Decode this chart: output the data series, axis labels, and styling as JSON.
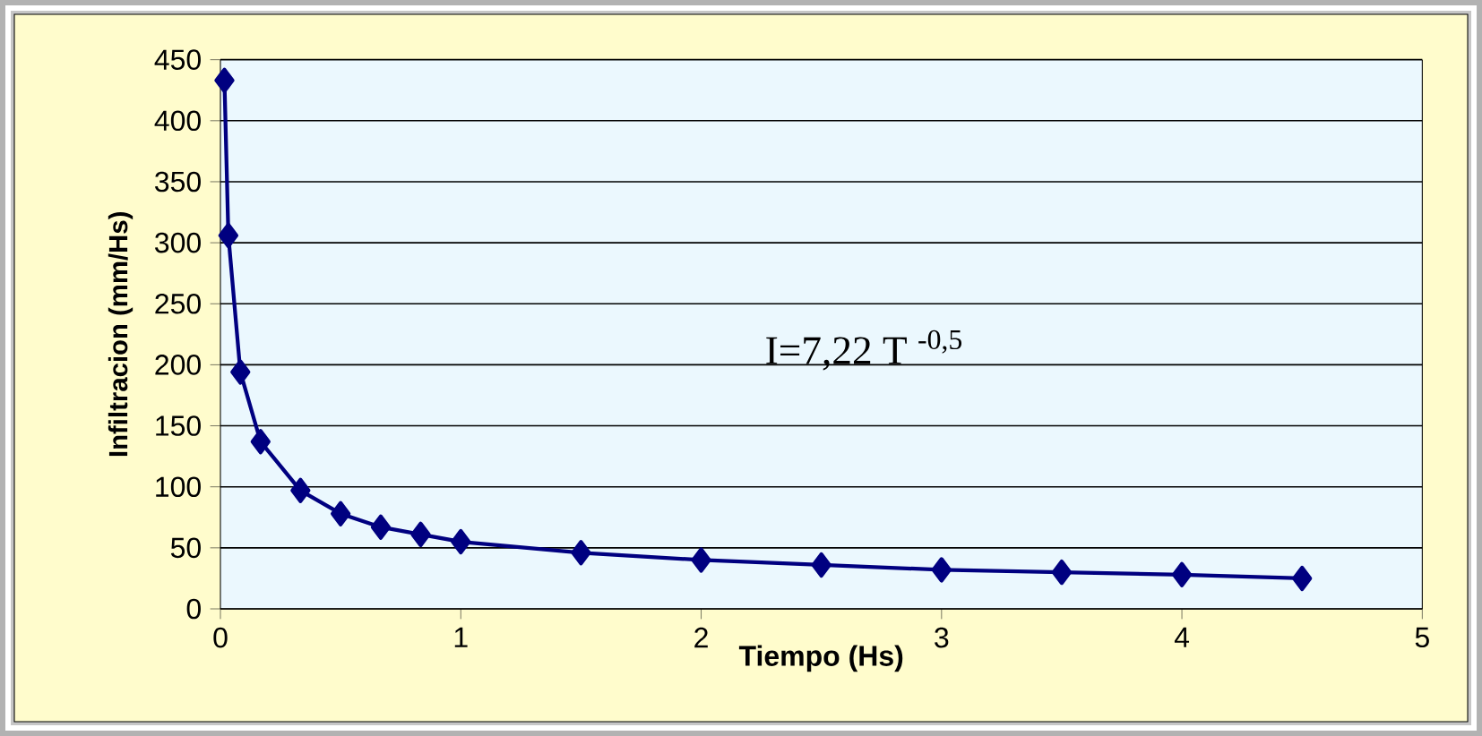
{
  "chart_data": {
    "type": "line",
    "xlabel": "Tiempo (Hs)",
    "ylabel": "Infiltracion (mm/Hs)",
    "annotations": [
      "I=7,22 T $^{-0,5}$"
    ],
    "x": [
      0.0167,
      0.033,
      0.083,
      0.167,
      0.333,
      0.5,
      0.667,
      0.833,
      1,
      1.5,
      2,
      2.5,
      3,
      3.5,
      4,
      4.5
    ],
    "series": [
      {
        "color": "#000080",
        "values": [
          433,
          306,
          194,
          137,
          97,
          78,
          67,
          61,
          55,
          46,
          40,
          36,
          32,
          30,
          28,
          25
        ]
      }
    ],
    "xlim": [
      0,
      5
    ],
    "ylim": [
      0,
      450
    ],
    "xticks": [
      0,
      1,
      2,
      3,
      4,
      5
    ],
    "yticks": [
      0,
      50,
      100,
      150,
      200,
      250,
      300,
      350,
      400,
      450
    ],
    "grid": "y",
    "marker": "diamond",
    "line_style": "solid"
  }
}
